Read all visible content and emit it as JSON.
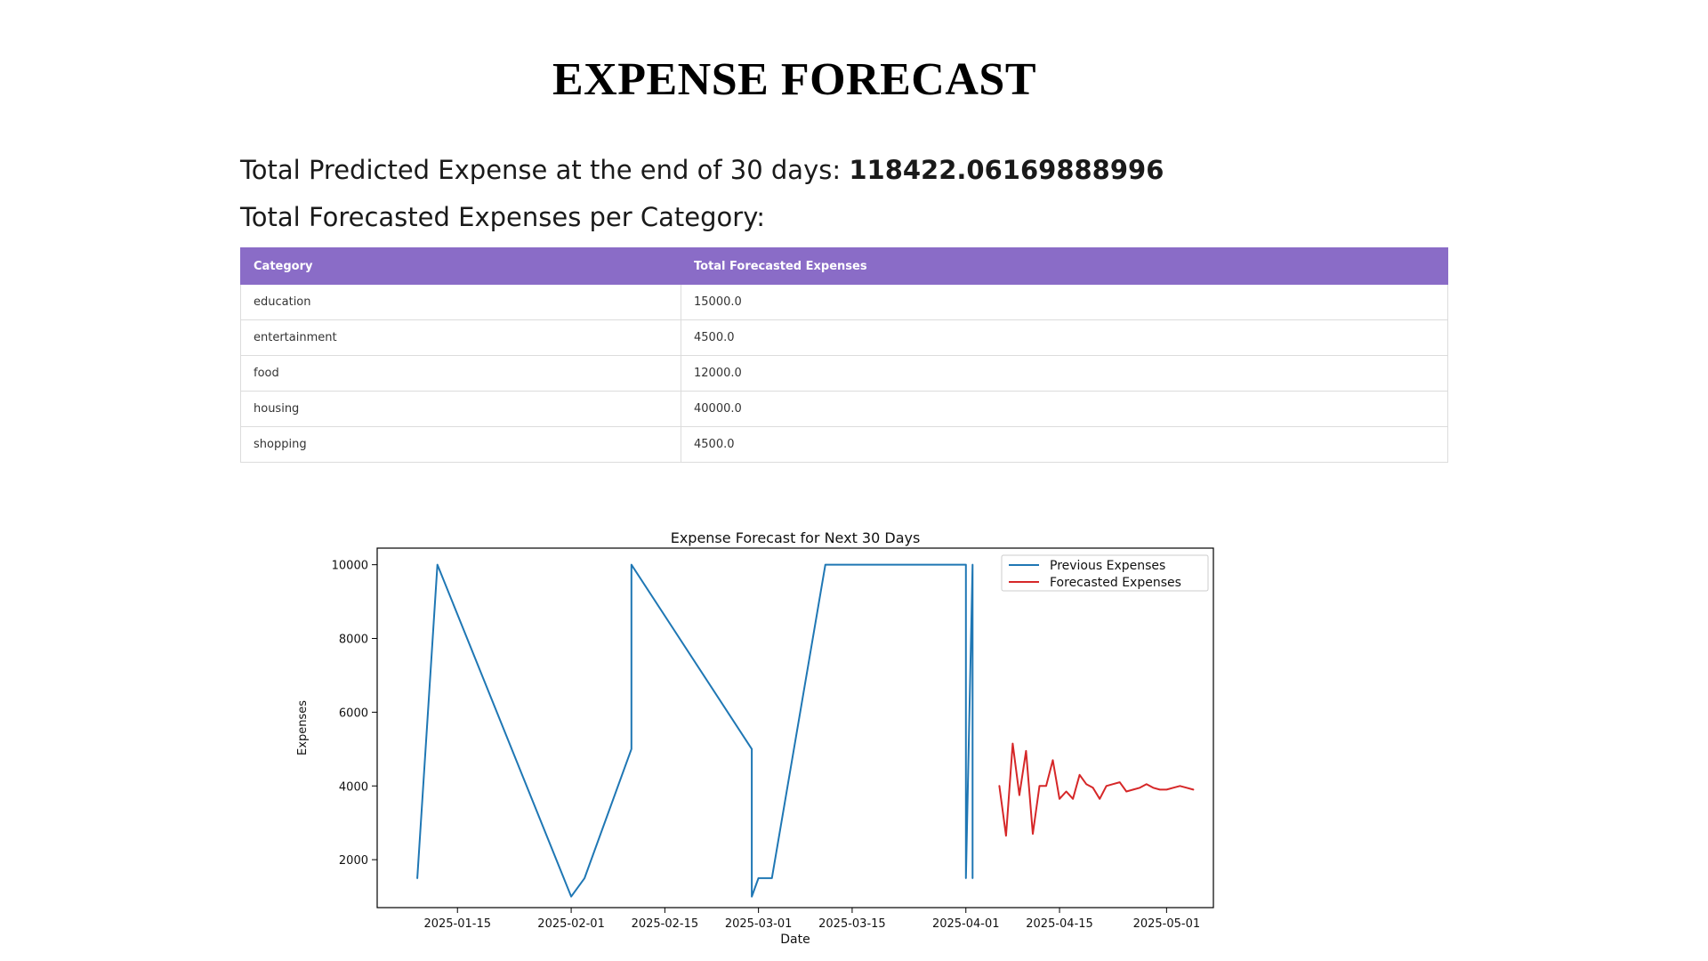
{
  "page": {
    "title": "EXPENSE FORECAST",
    "total_label": "Total Predicted Expense at the end of 30 days:",
    "total_value": "118422.06169888996",
    "category_heading": "Total Forecasted Expenses per Category:"
  },
  "table": {
    "headers": [
      "Category",
      "Total Forecasted Expenses"
    ],
    "rows": [
      [
        "education",
        "15000.0"
      ],
      [
        "entertainment",
        "4500.0"
      ],
      [
        "food",
        "12000.0"
      ],
      [
        "housing",
        "40000.0"
      ],
      [
        "shopping",
        "4500.0"
      ]
    ],
    "header_color": "#8a6cc7"
  },
  "chart_data": {
    "type": "line",
    "title": "Expense Forecast for Next 30 Days",
    "xlabel": "Date",
    "ylabel": "Expenses",
    "xlim": [
      "2025-01-03",
      "2025-05-08"
    ],
    "ylim": [
      700,
      10450
    ],
    "x_ticks": [
      "2025-01-15",
      "2025-02-01",
      "2025-02-15",
      "2025-03-01",
      "2025-03-15",
      "2025-04-01",
      "2025-04-15",
      "2025-05-01"
    ],
    "y_ticks": [
      2000,
      4000,
      6000,
      8000,
      10000
    ],
    "grid": false,
    "legend_position": "top-right",
    "series": [
      {
        "name": "Previous Expenses",
        "color": "#1f77b4",
        "x": [
          "2025-01-09",
          "2025-01-12",
          "2025-02-01",
          "2025-02-03",
          "2025-02-10",
          "2025-02-10",
          "2025-02-28",
          "2025-02-28",
          "2025-03-01",
          "2025-03-03",
          "2025-03-11",
          "2025-04-01",
          "2025-04-01",
          "2025-04-02",
          "2025-04-02"
        ],
        "y": [
          1500,
          10000,
          1000,
          1500,
          5000,
          10000,
          5000,
          1000,
          1500,
          1500,
          10000,
          10000,
          1500,
          10000,
          1500
        ]
      },
      {
        "name": "Forecasted Expenses",
        "color": "#d62728",
        "x": [
          "2025-04-06",
          "2025-04-07",
          "2025-04-08",
          "2025-04-09",
          "2025-04-10",
          "2025-04-11",
          "2025-04-12",
          "2025-04-13",
          "2025-04-14",
          "2025-04-15",
          "2025-04-16",
          "2025-04-17",
          "2025-04-18",
          "2025-04-19",
          "2025-04-20",
          "2025-04-21",
          "2025-04-22",
          "2025-04-23",
          "2025-04-24",
          "2025-04-25",
          "2025-04-26",
          "2025-04-27",
          "2025-04-28",
          "2025-04-29",
          "2025-04-30",
          "2025-05-01",
          "2025-05-02",
          "2025-05-03",
          "2025-05-04",
          "2025-05-05"
        ],
        "y": [
          4000,
          2650,
          5150,
          3750,
          4950,
          2700,
          4000,
          4000,
          4700,
          3650,
          3850,
          3650,
          4300,
          4050,
          3950,
          3650,
          4000,
          4050,
          4100,
          3850,
          3900,
          3950,
          4050,
          3950,
          3900,
          3900,
          3950,
          4000,
          3950,
          3900
        ]
      }
    ]
  }
}
